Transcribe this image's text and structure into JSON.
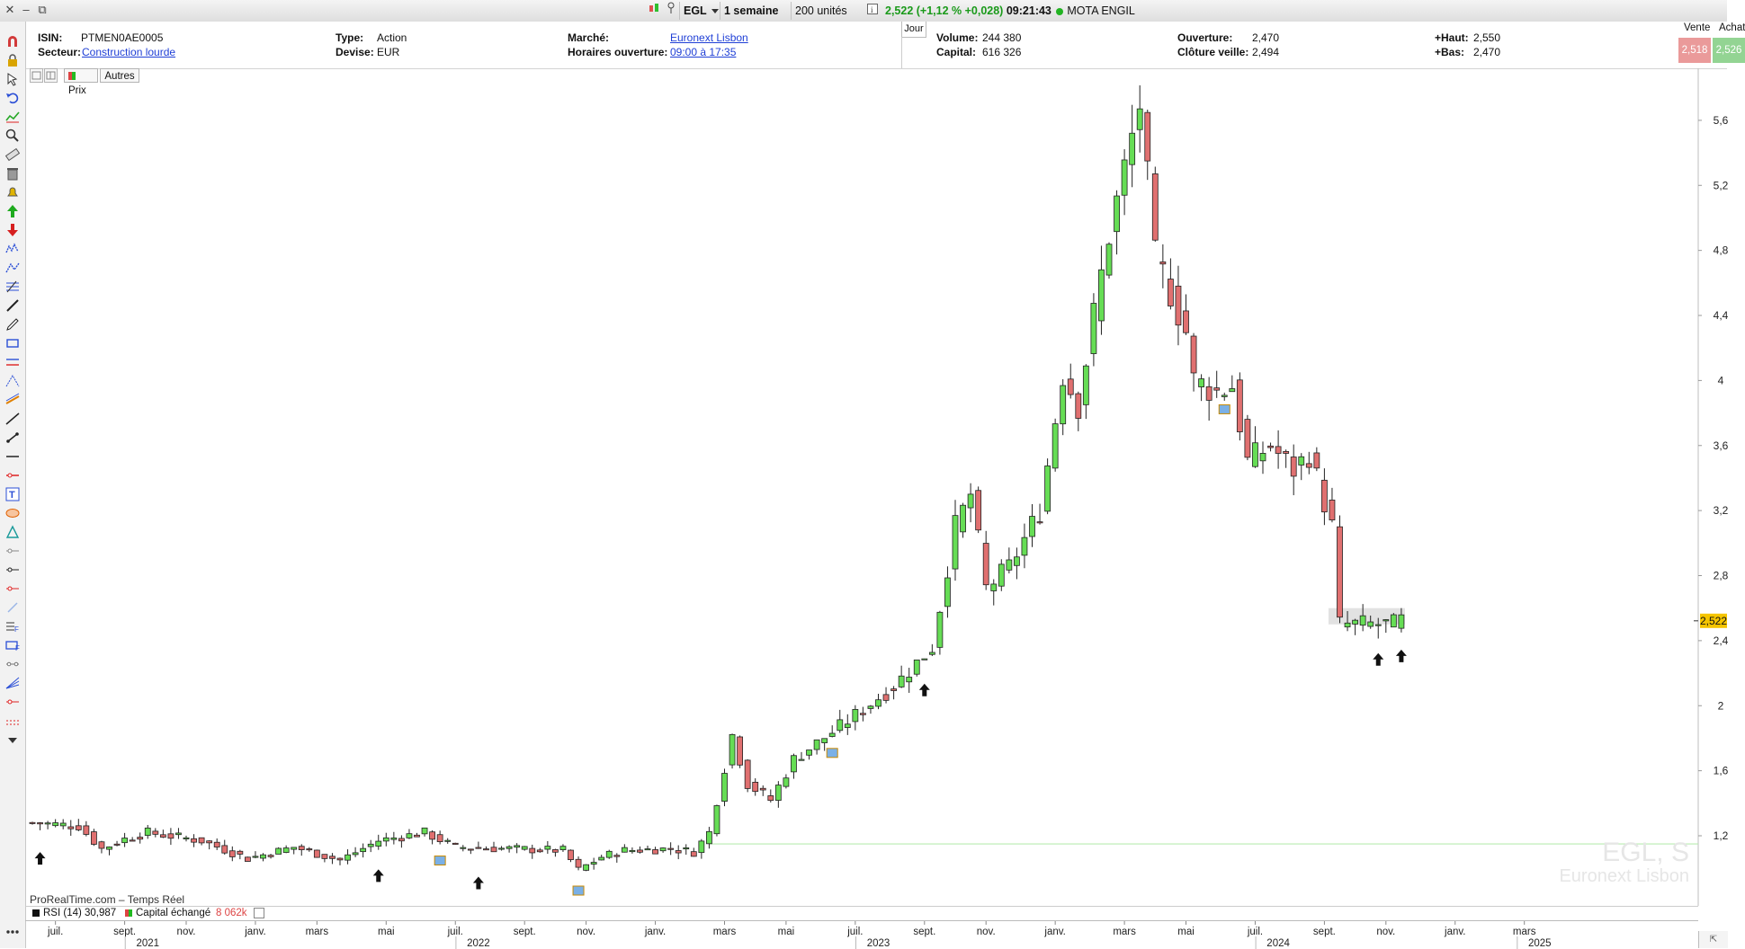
{
  "window": {
    "controls": [
      "close-icon",
      "minimize-icon",
      "maximize-icon"
    ]
  },
  "topbar": {
    "ticker": "EGL",
    "period": "1 semaine",
    "units": "200 unités",
    "quote": "2,522 (+1,12 % +0,028)",
    "time": "09:21:43",
    "name": "MOTA ENGIL",
    "colors": {
      "up": "#1a9a1a"
    }
  },
  "info": {
    "isin_label": "ISIN:",
    "isin": "PTMEN0AE0005",
    "secteur_label": "Secteur:",
    "secteur": "Construction lourde",
    "type_label": "Type:",
    "type": "Action",
    "devise_label": "Devise:",
    "devise": "EUR",
    "marche_label": "Marché:",
    "marche": "Euronext Lisbon",
    "horaires_label": "Horaires ouverture:",
    "horaires": "09:00 à 17:35",
    "jour_tab": "Jour",
    "volume_label": "Volume:",
    "volume": "244 380",
    "capital_label": "Capital:",
    "capital": "616 326",
    "ouverture_label": "Ouverture:",
    "ouverture": "2,470",
    "cloture_label": "Clôture veille:",
    "cloture": "2,494",
    "haut_label": "+Haut:",
    "haut": "2,550",
    "bas_label": "+Bas:",
    "bas": "2,470",
    "vente_label": "Vente",
    "vente": "2,518",
    "achat_label": "Achat",
    "achat": "2,526"
  },
  "chart_tabs": {
    "prix": "Prix",
    "autres": "Autres"
  },
  "footer": {
    "source": "ProRealTime.com – Temps Réel",
    "rsi_label": "RSI (14)",
    "rsi_value": "30,987",
    "capital_label": "Capital échangé",
    "capital_value": "8 062k"
  },
  "chart_data": {
    "type": "candlestick",
    "symbol": "EGL, S",
    "exchange": "Euronext Lisbon",
    "last_price": 2.522,
    "last_price_label": "2,522",
    "y_ticks": [
      {
        "v": 1.2,
        "label": "1,2"
      },
      {
        "v": 1.6,
        "label": "1,6"
      },
      {
        "v": 2.0,
        "label": "2"
      },
      {
        "v": 2.4,
        "label": "2,4"
      },
      {
        "v": 2.8,
        "label": "2,8"
      },
      {
        "v": 3.2,
        "label": "3,2"
      },
      {
        "v": 3.6,
        "label": "3,6"
      },
      {
        "v": 4.0,
        "label": "4"
      },
      {
        "v": 4.4,
        "label": "4,4"
      },
      {
        "v": 4.8,
        "label": "4,8"
      },
      {
        "v": 5.2,
        "label": "5,2"
      },
      {
        "v": 5.6,
        "label": "5,6"
      }
    ],
    "ylim": [
      0.78,
      5.92
    ],
    "support_line": 1.15,
    "x_month_ticks": [
      {
        "i": 3,
        "label": "juil."
      },
      {
        "i": 12,
        "label": "sept."
      },
      {
        "i": 20,
        "label": "nov."
      },
      {
        "i": 29,
        "label": "janv."
      },
      {
        "i": 37,
        "label": "mars"
      },
      {
        "i": 46,
        "label": "mai"
      },
      {
        "i": 55,
        "label": "juil."
      },
      {
        "i": 64,
        "label": "sept."
      },
      {
        "i": 72,
        "label": "nov."
      },
      {
        "i": 81,
        "label": "janv."
      },
      {
        "i": 90,
        "label": "mars"
      },
      {
        "i": 98,
        "label": "mai"
      },
      {
        "i": 107,
        "label": "juil."
      },
      {
        "i": 116,
        "label": "sept."
      },
      {
        "i": 124,
        "label": "nov."
      },
      {
        "i": 133,
        "label": "janv."
      },
      {
        "i": 142,
        "label": "mars"
      },
      {
        "i": 150,
        "label": "mai"
      },
      {
        "i": 159,
        "label": "juil."
      },
      {
        "i": 168,
        "label": "sept."
      },
      {
        "i": 176,
        "label": "nov."
      },
      {
        "i": 185,
        "label": "janv."
      },
      {
        "i": 194,
        "label": "mars"
      }
    ],
    "x_year_ticks": [
      {
        "i": 15,
        "label": "2021"
      },
      {
        "i": 58,
        "label": "2022"
      },
      {
        "i": 110,
        "label": "2023"
      },
      {
        "i": 162,
        "label": "2024"
      },
      {
        "i": 196,
        "label": "2025"
      }
    ],
    "arrows_at": [
      1,
      45,
      58,
      116,
      175,
      178
    ],
    "badges_at": [
      53,
      71,
      104,
      155
    ],
    "path_points": [
      [
        0,
        1.28
      ],
      [
        6,
        1.26
      ],
      [
        9,
        1.12
      ],
      [
        12,
        1.18
      ],
      [
        15,
        1.22
      ],
      [
        22,
        1.17
      ],
      [
        28,
        1.06
      ],
      [
        34,
        1.13
      ],
      [
        40,
        1.05
      ],
      [
        45,
        1.17
      ],
      [
        51,
        1.22
      ],
      [
        55,
        1.13
      ],
      [
        62,
        1.12
      ],
      [
        69,
        1.11
      ],
      [
        71,
        0.99
      ],
      [
        74,
        1.07
      ],
      [
        77,
        1.11
      ],
      [
        83,
        1.12
      ],
      [
        86,
        1.1
      ],
      [
        88,
        1.22
      ],
      [
        91,
        1.82
      ],
      [
        93,
        1.52
      ],
      [
        96,
        1.42
      ],
      [
        99,
        1.67
      ],
      [
        105,
        1.87
      ],
      [
        112,
        2.12
      ],
      [
        117,
        2.36
      ],
      [
        120,
        3.1
      ],
      [
        122,
        3.3
      ],
      [
        124,
        2.72
      ],
      [
        127,
        2.85
      ],
      [
        131,
        3.2
      ],
      [
        134,
        4.04
      ],
      [
        136,
        3.85
      ],
      [
        138,
        4.4
      ],
      [
        140,
        4.9
      ],
      [
        144,
        5.7
      ],
      [
        146,
        4.75
      ],
      [
        148,
        4.55
      ],
      [
        150,
        4.3
      ],
      [
        151,
        4.0
      ],
      [
        154,
        3.93
      ],
      [
        156,
        3.97
      ],
      [
        158,
        3.5
      ],
      [
        161,
        3.6
      ],
      [
        164,
        3.45
      ],
      [
        166,
        3.55
      ],
      [
        169,
        3.1
      ],
      [
        170,
        2.5
      ],
      [
        177,
        2.5
      ],
      [
        178,
        2.522
      ]
    ]
  }
}
